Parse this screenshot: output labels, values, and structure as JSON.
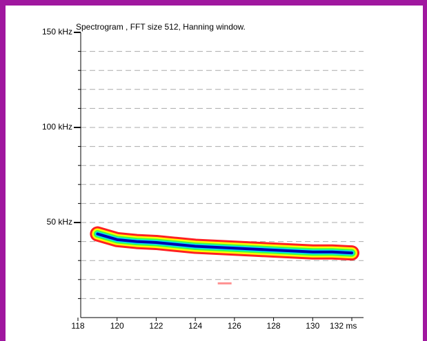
{
  "chart_data": {
    "type": "spectrogram",
    "title": "Spectrogram , FFT size 512, Hanning window.",
    "x": [
      119,
      120,
      121,
      122,
      123,
      124,
      125,
      126,
      127,
      128,
      129,
      130,
      131,
      132
    ],
    "values": [
      44,
      41,
      40,
      39.5,
      38.5,
      37.5,
      37,
      36.5,
      36,
      35.5,
      35,
      34.5,
      34.5,
      34
    ],
    "colors": [
      "#ff2020",
      "#ffff00",
      "#40ff40",
      "#00e0ff",
      "#0000b0"
    ],
    "speck": {
      "x": [
        125.5
      ],
      "values": [
        18
      ],
      "color": "#ff9090"
    },
    "xlim": [
      118,
      132.6
    ],
    "ylim": [
      0,
      150
    ],
    "xticks": [
      118,
      120,
      122,
      124,
      126,
      128,
      130,
      {
        "value": 132,
        "label": "132 ms"
      }
    ],
    "yticks": [
      {
        "value": 50,
        "label": "50 kHz"
      },
      {
        "value": 100,
        "label": "100 kHz"
      },
      {
        "value": 150,
        "label": "150 kHz"
      }
    ],
    "yminorticks": [
      10,
      20,
      30,
      40,
      50,
      60,
      70,
      80,
      90,
      100,
      110,
      120,
      130,
      140
    ],
    "grid": true
  }
}
